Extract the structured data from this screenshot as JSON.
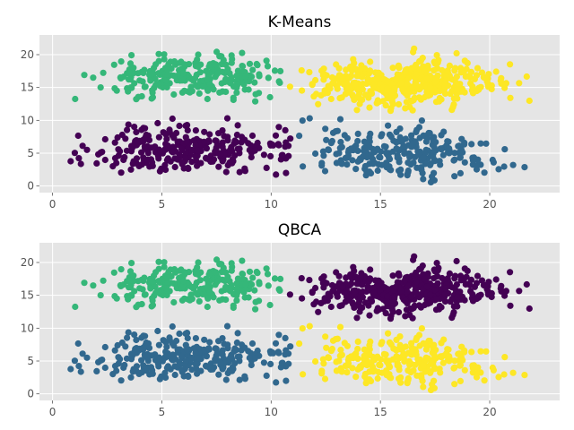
{
  "colors": {
    "panel_bg": "#e5e5e5",
    "grid": "#ffffff",
    "text": "#000000",
    "tick_text": "#555555",
    "purple": "#440154",
    "blue": "#31688e",
    "green": "#35b779",
    "yellow": "#fde725"
  },
  "chart_data": [
    {
      "type": "scatter",
      "title": "K-Means",
      "xlim": [
        -0.6,
        23.2
      ],
      "ylim": [
        -1.0,
        23.0
      ],
      "xticks": [
        0,
        5,
        10,
        15,
        20
      ],
      "yticks": [
        0,
        5,
        10,
        15,
        20
      ],
      "grid": true,
      "clusters": [
        {
          "name": "",
          "color": "#35b779",
          "center": [
            6.5,
            16.5
          ],
          "spread": [
            2.1,
            1.6
          ],
          "count": 260,
          "bounds": [
            [
              0.8,
              10.6
            ],
            [
              12.8,
              20.5
            ]
          ]
        },
        {
          "name": "",
          "color": "#440154",
          "center": [
            6.5,
            5.5
          ],
          "spread": [
            2.3,
            1.8
          ],
          "count": 280,
          "bounds": [
            [
              0.5,
              10.9
            ],
            [
              0.4,
              12.5
            ]
          ]
        },
        {
          "name": "",
          "color": "#fde725",
          "center": [
            16.0,
            15.5
          ],
          "spread": [
            2.2,
            1.8
          ],
          "count": 420,
          "bounds": [
            [
              10.8,
              22.0
            ],
            [
              11.4,
              22.0
            ]
          ]
        },
        {
          "name": "",
          "color": "#31688e",
          "center": [
            16.0,
            5.0
          ],
          "spread": [
            2.3,
            2.0
          ],
          "count": 260,
          "bounds": [
            [
              11.2,
              22.2
            ],
            [
              0.5,
              10.9
            ]
          ]
        }
      ]
    },
    {
      "type": "scatter",
      "title": "QBCA",
      "xlim": [
        -0.6,
        23.2
      ],
      "ylim": [
        -1.0,
        23.0
      ],
      "xticks": [
        0,
        5,
        10,
        15,
        20
      ],
      "yticks": [
        0,
        5,
        10,
        15,
        20
      ],
      "grid": true,
      "clusters": [
        {
          "name": "",
          "color": "#35b779",
          "center": [
            6.5,
            16.5
          ],
          "spread": [
            2.1,
            1.6
          ],
          "count": 260,
          "bounds": [
            [
              0.8,
              10.6
            ],
            [
              12.8,
              20.5
            ]
          ]
        },
        {
          "name": "",
          "color": "#31688e",
          "center": [
            6.5,
            5.5
          ],
          "spread": [
            2.3,
            1.8
          ],
          "count": 280,
          "bounds": [
            [
              0.5,
              10.9
            ],
            [
              0.4,
              12.5
            ]
          ]
        },
        {
          "name": "",
          "color": "#440154",
          "center": [
            16.0,
            15.5
          ],
          "spread": [
            2.2,
            1.8
          ],
          "count": 420,
          "bounds": [
            [
              10.8,
              22.0
            ],
            [
              11.4,
              22.0
            ]
          ]
        },
        {
          "name": "",
          "color": "#fde725",
          "center": [
            16.0,
            5.0
          ],
          "spread": [
            2.3,
            2.0
          ],
          "count": 260,
          "bounds": [
            [
              11.2,
              22.2
            ],
            [
              0.5,
              10.9
            ]
          ]
        }
      ]
    }
  ]
}
